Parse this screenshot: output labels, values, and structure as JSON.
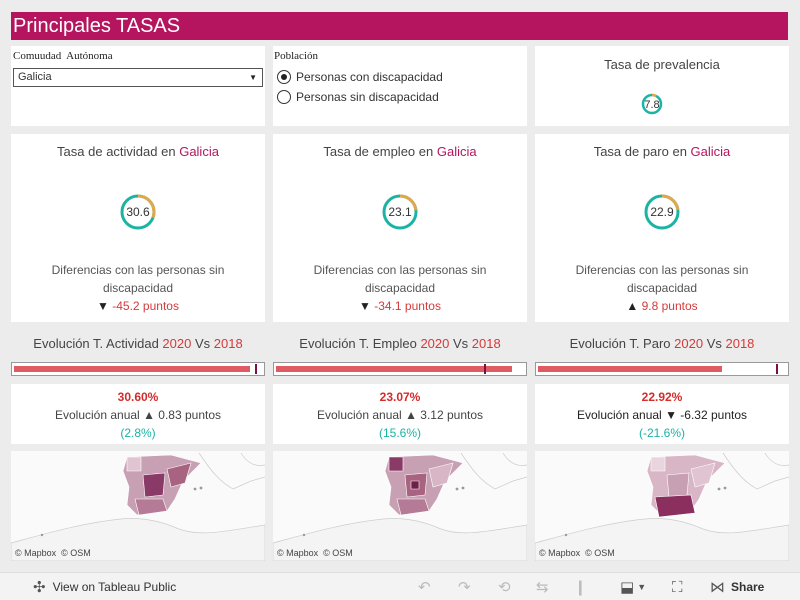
{
  "header": {
    "title": "Principales TASAS"
  },
  "filters": {
    "region_label": "Comuudad  Autónoma",
    "region_value": "Galicia",
    "population_label": "Población",
    "options": [
      {
        "label": "Personas con discapacidad",
        "selected": true
      },
      {
        "label": "Personas sin discapacidad",
        "selected": false
      }
    ]
  },
  "prevalence": {
    "title": "Tasa de prevalencia",
    "value": "7.8",
    "fraction": 0.078
  },
  "rates": [
    {
      "title_prefix": "Tasa de actividad en",
      "region": "Galicia",
      "value": "30.6",
      "fraction": 0.306,
      "diff_text": "Diferencias con las personas sin discapacidad",
      "arrow": "▼",
      "diff": "-45.2 puntos"
    },
    {
      "title_prefix": "Tasa de empleo en",
      "region": "Galicia",
      "value": "23.1",
      "fraction": 0.231,
      "diff_text": "Diferencias con las personas sin discapacidad",
      "arrow": "▼",
      "diff": "-34.1 puntos"
    },
    {
      "title_prefix": "Tasa de paro en",
      "region": "Galicia",
      "value": "22.9",
      "fraction": 0.229,
      "diff_text": "Diferencias con las personas sin discapacidad",
      "arrow": "▲",
      "diff": "9.8 puntos"
    }
  ],
  "evolution": [
    {
      "title_prefix": "Evolución T. Actividad",
      "year1": "2020",
      "vs": "Vs",
      "year2": "2018",
      "fill_fraction": 0.95,
      "marker_fraction": 0.97,
      "pct": "30.60%",
      "annual_label": "Evolución anual",
      "arrow": "▲",
      "points": "0.83 puntos",
      "rel": "(2.8%)"
    },
    {
      "title_prefix": "Evolución T. Empleo",
      "year1": "2020",
      "vs": "Vs",
      "year2": "2018",
      "fill_fraction": 0.95,
      "marker_fraction": 0.84,
      "pct": "23.07%",
      "annual_label": "Evolución anual",
      "arrow": "▲",
      "points": "3.12 puntos",
      "rel": "(15.6%)"
    },
    {
      "title_prefix": "Evolución T. Paro",
      "year1": "2020",
      "vs": "Vs",
      "year2": "2018",
      "fill_fraction": 0.74,
      "marker_fraction": 0.96,
      "pct": "22.92%",
      "annual_label": "Evolución anual",
      "arrow": "▼",
      "points": "-6.32 puntos",
      "rel": "(-21.6%)"
    }
  ],
  "map_credit": "© Mapbox  © OSM",
  "footer": {
    "view_label": "View on Tableau Public",
    "share_label": "Share"
  },
  "colors": {
    "brand": "#b5155f",
    "ring_bg": "#1bb3a4",
    "ring_fg": "#e0a84a",
    "bar": "#e05a61"
  }
}
